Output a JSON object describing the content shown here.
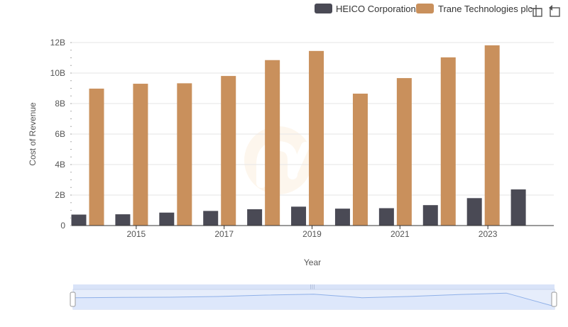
{
  "chart_data": {
    "type": "bar",
    "categories": [
      "2014",
      "2015",
      "2016",
      "2017",
      "2018",
      "2019",
      "2020",
      "2021",
      "2022",
      "2023",
      "2024"
    ],
    "x_tick_labels": [
      "2015",
      "2017",
      "2019",
      "2021",
      "2023"
    ],
    "series": [
      {
        "name": "HEICO Corporation",
        "color": "#4a4a55",
        "values": [
          0.72,
          0.74,
          0.85,
          0.96,
          1.07,
          1.24,
          1.11,
          1.14,
          1.34,
          1.8,
          2.37
        ]
      },
      {
        "name": "Trane Technologies plc",
        "color": "#c9905c",
        "values": [
          8.98,
          9.3,
          9.33,
          9.81,
          10.85,
          11.45,
          8.65,
          9.67,
          11.03,
          11.82,
          null
        ]
      }
    ],
    "y_ticks": [
      0,
      2,
      4,
      6,
      8,
      10,
      12
    ],
    "y_tick_labels": [
      "0",
      "2B",
      "4B",
      "6B",
      "8B",
      "10B",
      "12B"
    ],
    "ylim": [
      0,
      12
    ],
    "xlabel": "Year",
    "ylabel": "Cost of Revenue",
    "grid": true,
    "legend": "top-right",
    "watermark": "logo-watermark",
    "navigator": {
      "line_color": "#8fb0e8",
      "fill_color": "#dde7fb",
      "handle_grip": "|||"
    }
  },
  "toolbar": {
    "zoom_icon": "crosshair-zoom-icon",
    "reset_icon": "reset-zoom-icon"
  }
}
